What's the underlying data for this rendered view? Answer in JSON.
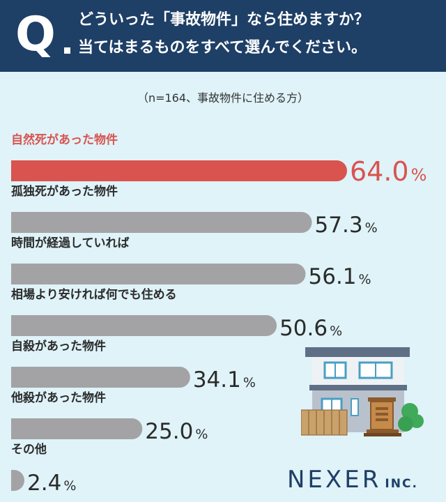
{
  "header": {
    "q_mark": "Q",
    "question_line1": "どういった「事故物件」なら住めますか？",
    "question_line2": "当てはまるものをすべて選んでください。"
  },
  "sample_note": "（n=164、事故物件に住める方）",
  "logo": {
    "main": "NEXER",
    "sub": "INC."
  },
  "colors": {
    "header": "#1e3f66",
    "highlight": "#d9534f",
    "bar": "#a3a3a6",
    "background": "#dff3f8"
  },
  "chart_data": {
    "type": "bar",
    "orientation": "horizontal",
    "unit": "%",
    "categories": [
      "自然死があった物件",
      "孤独死があった物件",
      "時間が経過していれば",
      "相場より安ければ何でも住める",
      "自殺があった物件",
      "他殺があった物件",
      "その他"
    ],
    "values": [
      64.0,
      57.3,
      56.1,
      50.6,
      34.1,
      25.0,
      2.4
    ],
    "value_labels": [
      "64.0",
      "57.3",
      "56.1",
      "50.6",
      "34.1",
      "25.0",
      "2.4"
    ],
    "highlight_index": 0,
    "xlim": [
      0,
      64.0
    ]
  }
}
